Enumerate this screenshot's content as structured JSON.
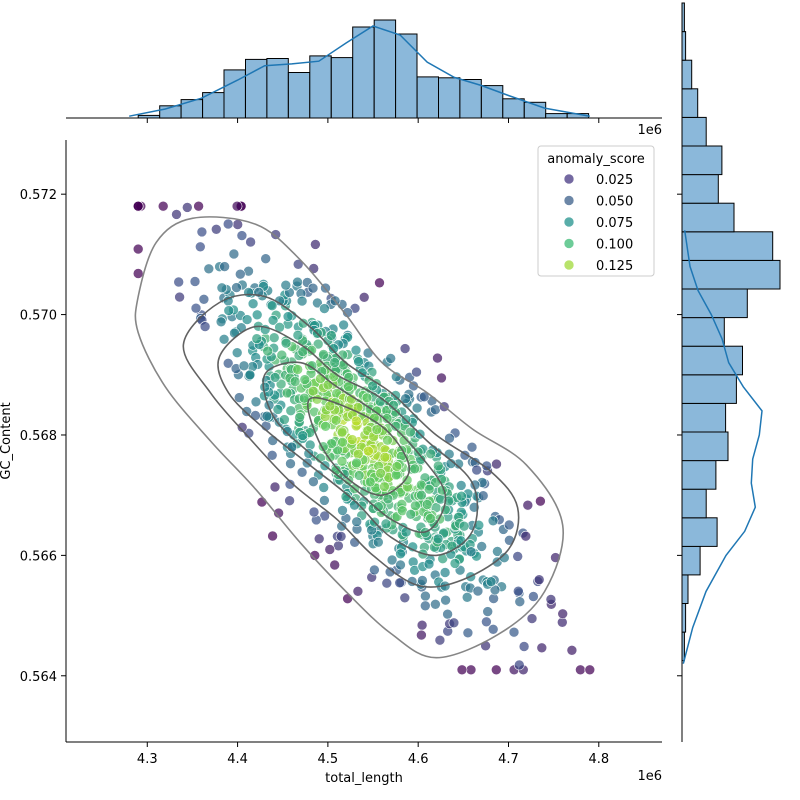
{
  "chart_data": {
    "type": "scatter",
    "subtype": "jointplot",
    "xlabel": "total_length",
    "ylabel": "GC_Content",
    "x_offset_label": "1e6",
    "top_offset_label": "1e6",
    "xlim": [
      4.21,
      4.87
    ],
    "ylim": [
      0.5629,
      0.5729
    ],
    "x_ticks": [
      "4.3",
      "4.4",
      "4.5",
      "4.6",
      "4.7",
      "4.8"
    ],
    "x_tick_values": [
      4.3,
      4.4,
      4.5,
      4.6,
      4.7,
      4.8
    ],
    "y_ticks": [
      "0.564",
      "0.566",
      "0.568",
      "0.570",
      "0.572"
    ],
    "y_tick_values": [
      0.564,
      0.566,
      0.568,
      0.57,
      0.572
    ],
    "legend": {
      "title": "anomaly_score",
      "placement": "top-right",
      "entries": [
        {
          "label": "0.025",
          "color": "#453781"
        },
        {
          "label": "0.050",
          "color": "#3b5f8a"
        },
        {
          "label": "0.075",
          "color": "#21918c"
        },
        {
          "label": "0.100",
          "color": "#3cbb75"
        },
        {
          "label": "0.125",
          "color": "#a0da39"
        }
      ]
    },
    "color_scale": [
      "#440154",
      "#3b528b",
      "#21918c",
      "#5ec962",
      "#d2e21b"
    ],
    "color_range": [
      0.0,
      0.14
    ],
    "marginal_x": {
      "type": "histogram",
      "bin_start": 4.29,
      "bin_width": 0.02375,
      "counts": [
        3,
        14,
        21,
        29,
        55,
        67,
        68,
        52,
        71,
        69,
        104,
        112,
        96,
        47,
        46,
        44,
        37,
        22,
        18,
        5,
        5
      ],
      "kde": [
        [
          4.28,
          2
        ],
        [
          4.32,
          10
        ],
        [
          4.36,
          22
        ],
        [
          4.4,
          42
        ],
        [
          4.43,
          58
        ],
        [
          4.46,
          60
        ],
        [
          4.49,
          63
        ],
        [
          4.52,
          83
        ],
        [
          4.55,
          102
        ],
        [
          4.58,
          92
        ],
        [
          4.61,
          62
        ],
        [
          4.64,
          45
        ],
        [
          4.67,
          36
        ],
        [
          4.7,
          25
        ],
        [
          4.74,
          11
        ],
        [
          4.79,
          2
        ]
      ]
    },
    "marginal_y": {
      "type": "histogram",
      "bin_start": 0.56425,
      "bin_width": 0.000475,
      "counts": [
        2,
        3,
        5,
        15,
        29,
        20,
        28,
        38,
        36,
        45,
        50,
        35,
        54,
        81,
        75,
        43,
        30,
        33,
        20,
        13,
        8,
        3,
        2
      ],
      "kde": [
        [
          0.5642,
          1
        ],
        [
          0.5648,
          8
        ],
        [
          0.5654,
          18
        ],
        [
          0.566,
          33
        ],
        [
          0.5664,
          47
        ],
        [
          0.5668,
          55
        ],
        [
          0.5672,
          52
        ],
        [
          0.5676,
          53
        ],
        [
          0.568,
          58
        ],
        [
          0.5684,
          60
        ],
        [
          0.5688,
          46
        ],
        [
          0.5692,
          35
        ],
        [
          0.5696,
          30
        ],
        [
          0.57,
          22
        ],
        [
          0.5704,
          12
        ],
        [
          0.5708,
          6
        ],
        [
          0.5714,
          2
        ]
      ]
    },
    "kde_contours": [
      [
        [
          4.29,
          0.5703
        ],
        [
          4.31,
          0.5712
        ],
        [
          4.35,
          0.5716
        ],
        [
          4.42,
          0.5715
        ],
        [
          4.47,
          0.5709
        ],
        [
          4.52,
          0.57
        ],
        [
          4.56,
          0.5692
        ],
        [
          4.61,
          0.5687
        ],
        [
          4.66,
          0.5681
        ],
        [
          4.72,
          0.5675
        ],
        [
          4.76,
          0.5665
        ],
        [
          4.74,
          0.5654
        ],
        [
          4.69,
          0.5647
        ],
        [
          4.62,
          0.5643
        ],
        [
          4.57,
          0.5647
        ],
        [
          4.52,
          0.5654
        ],
        [
          4.47,
          0.5662
        ],
        [
          4.42,
          0.5671
        ],
        [
          4.37,
          0.5679
        ],
        [
          4.32,
          0.5688
        ],
        [
          4.29,
          0.5697
        ]
      ],
      [
        [
          4.34,
          0.5695
        ],
        [
          4.38,
          0.5702
        ],
        [
          4.43,
          0.5703
        ],
        [
          4.48,
          0.5698
        ],
        [
          4.52,
          0.5692
        ],
        [
          4.57,
          0.5687
        ],
        [
          4.62,
          0.568
        ],
        [
          4.68,
          0.5674
        ],
        [
          4.71,
          0.5668
        ],
        [
          4.7,
          0.5661
        ],
        [
          4.65,
          0.5656
        ],
        [
          4.6,
          0.5655
        ],
        [
          4.55,
          0.566
        ],
        [
          4.51,
          0.5666
        ],
        [
          4.46,
          0.5672
        ],
        [
          4.41,
          0.568
        ],
        [
          4.37,
          0.5687
        ]
      ],
      [
        [
          4.38,
          0.5693
        ],
        [
          4.42,
          0.5698
        ],
        [
          4.47,
          0.5695
        ],
        [
          4.51,
          0.569
        ],
        [
          4.56,
          0.5686
        ],
        [
          4.61,
          0.5679
        ],
        [
          4.66,
          0.5672
        ],
        [
          4.66,
          0.5664
        ],
        [
          4.62,
          0.566
        ],
        [
          4.57,
          0.5663
        ],
        [
          4.53,
          0.5669
        ],
        [
          4.48,
          0.5675
        ],
        [
          4.43,
          0.5681
        ],
        [
          4.39,
          0.5687
        ]
      ],
      [
        [
          4.43,
          0.569
        ],
        [
          4.47,
          0.5692
        ],
        [
          4.51,
          0.5688
        ],
        [
          4.56,
          0.5683
        ],
        [
          4.6,
          0.5677
        ],
        [
          4.63,
          0.567
        ],
        [
          4.61,
          0.5664
        ],
        [
          4.57,
          0.5666
        ],
        [
          4.53,
          0.5671
        ],
        [
          4.48,
          0.5677
        ],
        [
          4.44,
          0.5683
        ]
      ],
      [
        [
          4.48,
          0.5686
        ],
        [
          4.53,
          0.5684
        ],
        [
          4.57,
          0.568
        ],
        [
          4.59,
          0.5674
        ],
        [
          4.56,
          0.567
        ],
        [
          4.52,
          0.5673
        ],
        [
          4.49,
          0.5679
        ]
      ]
    ]
  }
}
